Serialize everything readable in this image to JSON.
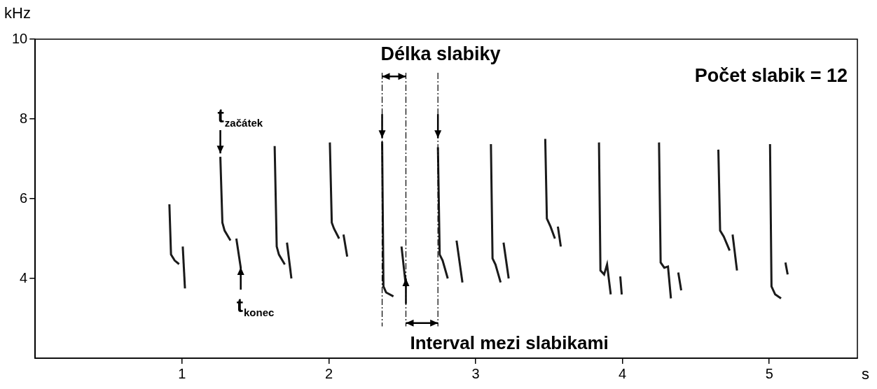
{
  "chart_data": {
    "type": "line",
    "x_label": "s",
    "y_label": "kHz",
    "xlim": [
      0,
      5.6
    ],
    "ylim": [
      2,
      10
    ],
    "xticks": [
      1,
      2,
      3,
      4,
      5
    ],
    "yticks": [
      4,
      6,
      8,
      10
    ],
    "grid": false,
    "color": "#1a1a1a",
    "series": [
      {
        "elements": [
          {
            "x": [
              0.914,
              0.925,
              0.95,
              0.98
            ],
            "values": [
              5.86,
              4.6,
              4.45,
              4.36
            ]
          },
          {
            "x": [
              1.005,
              1.02
            ],
            "values": [
              4.8,
              3.75
            ]
          }
        ]
      },
      {
        "elements": [
          {
            "x": [
              1.261,
              1.275,
              1.29,
              1.33
            ],
            "values": [
              7.05,
              5.4,
              5.2,
              4.95
            ]
          },
          {
            "x": [
              1.37,
              1.4
            ],
            "values": [
              5.0,
              4.27
            ]
          }
        ]
      },
      {
        "elements": [
          {
            "x": [
              1.631,
              1.645,
              1.66,
              1.7
            ],
            "values": [
              7.32,
              4.8,
              4.6,
              4.35
            ]
          },
          {
            "x": [
              1.715,
              1.745
            ],
            "values": [
              4.9,
              4.0
            ]
          }
        ]
      },
      {
        "elements": [
          {
            "x": [
              2.007,
              2.02,
              2.035,
              2.07
            ],
            "values": [
              7.41,
              5.4,
              5.25,
              5.0
            ]
          },
          {
            "x": [
              2.1,
              2.125
            ],
            "values": [
              5.1,
              4.55
            ]
          }
        ]
      },
      {
        "elements": [
          {
            "x": [
              2.363,
              2.372,
              2.39,
              2.44
            ],
            "values": [
              7.43,
              3.8,
              3.65,
              3.55
            ]
          },
          {
            "x": [
              2.495,
              2.525
            ],
            "values": [
              4.8,
              3.8
            ]
          }
        ]
      },
      {
        "elements": [
          {
            "x": [
              2.743,
              2.755,
              2.775,
              2.81
            ],
            "values": [
              7.29,
              4.6,
              4.45,
              4.0
            ]
          },
          {
            "x": [
              2.87,
              2.91
            ],
            "values": [
              4.95,
              3.9
            ]
          }
        ]
      },
      {
        "elements": [
          {
            "x": [
              3.104,
              3.115,
              3.135,
              3.17
            ],
            "values": [
              7.37,
              4.5,
              4.35,
              3.9
            ]
          },
          {
            "x": [
              3.19,
              3.225
            ],
            "values": [
              4.9,
              4.0
            ]
          }
        ]
      },
      {
        "elements": [
          {
            "x": [
              3.474,
              3.485,
              3.51,
              3.54
            ],
            "values": [
              7.5,
              5.5,
              5.3,
              5.0
            ]
          },
          {
            "x": [
              3.56,
              3.58
            ],
            "values": [
              5.3,
              4.8
            ]
          }
        ]
      },
      {
        "elements": [
          {
            "x": [
              3.84,
              3.85,
              3.875,
              3.895,
              3.92
            ],
            "values": [
              7.41,
              4.2,
              4.1,
              4.35,
              3.6
            ]
          },
          {
            "x": [
              3.985,
              3.995
            ],
            "values": [
              4.05,
              3.6
            ]
          }
        ]
      },
      {
        "elements": [
          {
            "x": [
              4.249,
              4.26,
              4.285,
              4.31,
              4.33
            ],
            "values": [
              7.41,
              4.4,
              4.27,
              4.3,
              3.5
            ]
          },
          {
            "x": [
              4.38,
              4.4
            ],
            "values": [
              4.15,
              3.7
            ]
          }
        ]
      },
      {
        "elements": [
          {
            "x": [
              4.653,
              4.665,
              4.69,
              4.73
            ],
            "values": [
              7.23,
              5.2,
              5.05,
              4.7
            ]
          },
          {
            "x": [
              4.75,
              4.78
            ],
            "values": [
              5.1,
              4.2
            ]
          }
        ]
      },
      {
        "elements": [
          {
            "x": [
              5.005,
              5.015,
              5.04,
              5.08
            ],
            "values": [
              7.37,
              3.8,
              3.6,
              3.5
            ]
          },
          {
            "x": [
              5.11,
              5.125
            ],
            "values": [
              4.4,
              4.1
            ]
          }
        ]
      }
    ],
    "annotations": {
      "count": "Počet slabik = 12",
      "t_start": {
        "text": "t",
        "subscript": "začátek",
        "x": 1.261
      },
      "t_end": {
        "text": "t",
        "subscript": "konec",
        "x": 1.4
      },
      "syllable_length": {
        "label": "Délka slabiky",
        "start": 2.363,
        "end": 2.525
      },
      "interval": {
        "label": "Interval mezi slabikami",
        "start": 2.525,
        "end": 2.743
      }
    }
  }
}
